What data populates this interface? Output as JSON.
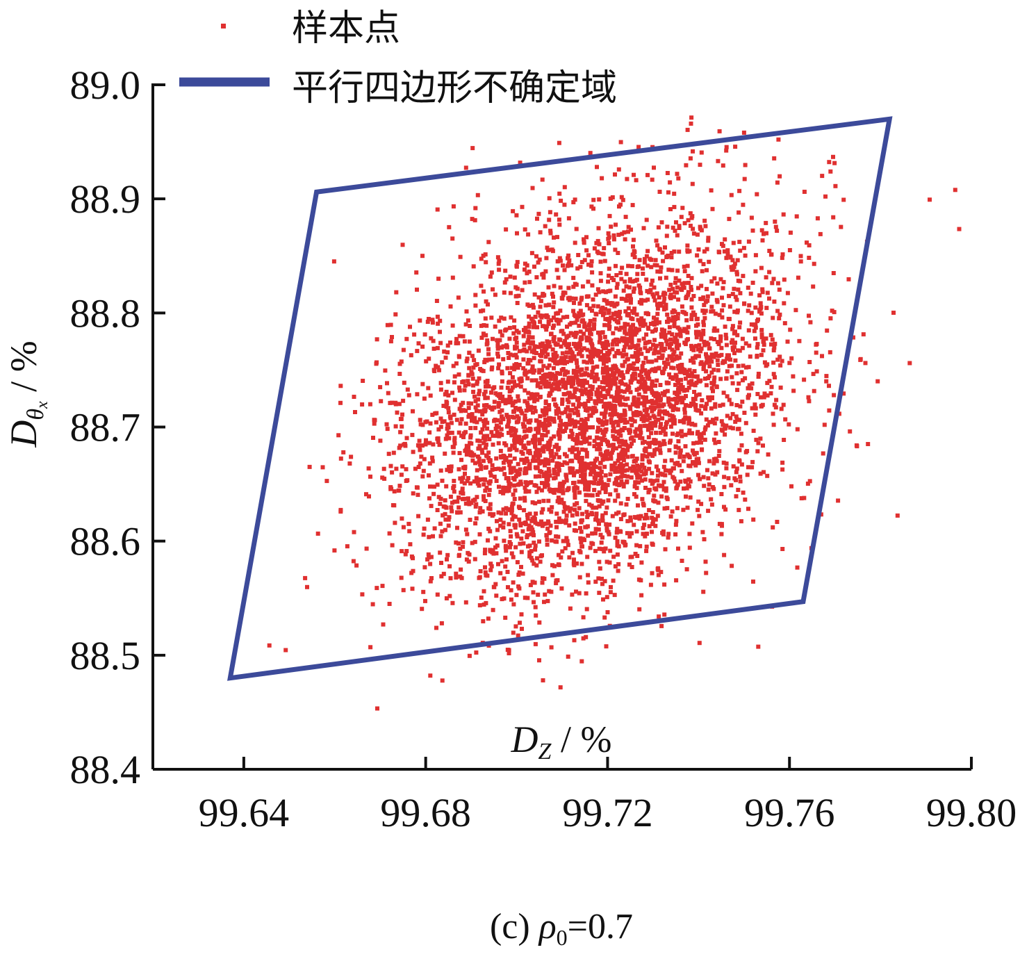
{
  "chart_data": {
    "type": "scatter",
    "xlabel_main": "D",
    "xlabel_sub": "Z",
    "xlabel_unit": " / %",
    "ylabel_main": "D",
    "ylabel_sub": "θ",
    "ylabel_subsub": "x",
    "ylabel_unit": " / %",
    "caption_prefix": "(c) ",
    "caption_symbol": "ρ",
    "caption_sub": "0",
    "caption_suffix": "=0.7",
    "xlim": [
      99.62,
      99.8
    ],
    "ylim": [
      88.4,
      89.0
    ],
    "x_ticks": [
      {
        "value": 99.64,
        "label": "99.64"
      },
      {
        "value": 99.68,
        "label": "99.68"
      },
      {
        "value": 99.72,
        "label": "99.72"
      },
      {
        "value": 99.76,
        "label": "99.76"
      },
      {
        "value": 99.8,
        "label": "99.80"
      }
    ],
    "y_ticks": [
      {
        "value": 88.4,
        "label": "88.4"
      },
      {
        "value": 88.5,
        "label": "88.5"
      },
      {
        "value": 88.6,
        "label": "88.6"
      },
      {
        "value": 88.7,
        "label": "88.7"
      },
      {
        "value": 88.8,
        "label": "88.8"
      },
      {
        "value": 88.9,
        "label": "88.9"
      },
      {
        "value": 89.0,
        "label": "89.0"
      }
    ],
    "legend_position": "top-left",
    "grid": false,
    "series": [
      {
        "name": "样本点",
        "kind": "scatter",
        "color": "#e03030",
        "center": [
          99.717,
          88.72
        ],
        "spread": [
          0.021,
          0.08
        ],
        "correlation": 0.3,
        "count": 4500
      },
      {
        "name": "平行四边形不确定域",
        "kind": "polygon",
        "color": "#3c4a9a",
        "vertices": [
          [
            99.637,
            88.48
          ],
          [
            99.763,
            88.547
          ],
          [
            99.782,
            88.97
          ],
          [
            99.656,
            88.906
          ]
        ]
      }
    ]
  }
}
